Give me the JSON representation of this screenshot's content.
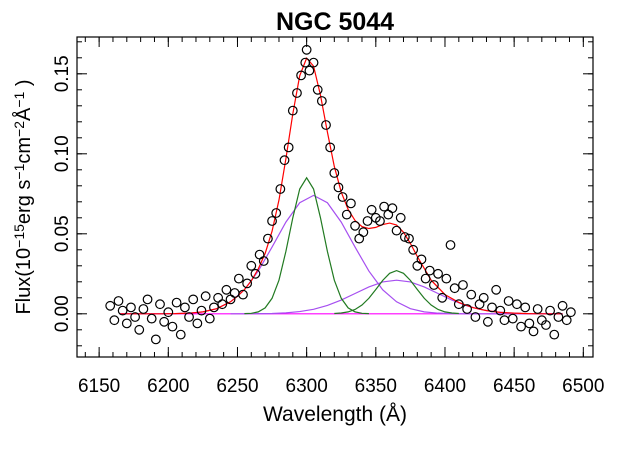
{
  "chart_data": {
    "type": "scatter",
    "title": "NGC 5044",
    "xlabel": "Wavelength (Å)",
    "ylabel": [
      {
        "text": "Flux(10",
        "sup": false
      },
      {
        "text": "−15",
        "sup": true
      },
      {
        "text": "erg s",
        "sup": false
      },
      {
        "text": "−1",
        "sup": true
      },
      {
        "text": "cm",
        "sup": false
      },
      {
        "text": "−2",
        "sup": true
      },
      {
        "text": "Å",
        "sup": false
      },
      {
        "text": "−1",
        "sup": true
      },
      {
        "text": " )",
        "sup": false
      }
    ],
    "xlim": [
      6134,
      6507
    ],
    "ylim": [
      -0.027,
      0.173
    ],
    "xticks": [
      6150,
      6200,
      6250,
      6300,
      6350,
      6400,
      6450,
      6500
    ],
    "yticks": [
      {
        "value": 0,
        "label": "0.00"
      },
      {
        "value": 0.05,
        "label": "0.05"
      },
      {
        "value": 0.1,
        "label": "0.10"
      },
      {
        "value": 0.15,
        "label": "0.15"
      }
    ],
    "xminor_step": 10,
    "yminor_step": 0.01,
    "marker_color": "#000000",
    "x": [
      6158,
      6161,
      6164,
      6167,
      6170,
      6173,
      6176,
      6179,
      6182,
      6185,
      6188,
      6191,
      6194,
      6197,
      6200,
      6203,
      6206,
      6209,
      6212,
      6215,
      6218,
      6221,
      6224,
      6227,
      6230,
      6233,
      6236,
      6239,
      6242,
      6245,
      6248,
      6251,
      6254,
      6257,
      6260,
      6263,
      6266,
      6269,
      6272,
      6275,
      6278,
      6281,
      6284,
      6287,
      6290,
      6293,
      6296,
      6299,
      6300,
      6302,
      6305,
      6308,
      6311,
      6314,
      6317,
      6320,
      6323,
      6326,
      6329,
      6332,
      6335,
      6338,
      6341,
      6344,
      6347,
      6350,
      6353,
      6356,
      6359,
      6362,
      6365,
      6368,
      6371,
      6374,
      6377,
      6380,
      6383,
      6386,
      6389,
      6392,
      6395,
      6398,
      6401,
      6404,
      6407,
      6410,
      6413,
      6416,
      6419,
      6422,
      6425,
      6428,
      6431,
      6434,
      6437,
      6440,
      6443,
      6446,
      6449,
      6452,
      6455,
      6458,
      6461,
      6464,
      6467,
      6470,
      6473,
      6476,
      6479,
      6482,
      6485,
      6488,
      6491
    ],
    "values": [
      0.005,
      -0.004,
      0.008,
      0.002,
      -0.006,
      0.004,
      -0.002,
      -0.01,
      0.003,
      0.009,
      -0.003,
      -0.016,
      0.006,
      -0.005,
      0.001,
      -0.008,
      0.007,
      -0.013,
      0.004,
      -0.002,
      0.009,
      -0.006,
      0.002,
      0.011,
      -0.003,
      0.004,
      0.01,
      0.006,
      0.015,
      0.009,
      0.013,
      0.022,
      0.012,
      0.019,
      0.03,
      0.025,
      0.037,
      0.033,
      0.047,
      0.058,
      0.063,
      0.078,
      0.096,
      0.104,
      0.127,
      0.138,
      0.149,
      0.157,
      0.165,
      0.152,
      0.157,
      0.14,
      0.133,
      0.118,
      0.104,
      0.088,
      0.079,
      0.073,
      0.062,
      0.069,
      0.055,
      0.047,
      0.051,
      0.058,
      0.065,
      0.06,
      0.058,
      0.067,
      0.062,
      0.066,
      0.052,
      0.06,
      0.048,
      0.047,
      0.04,
      0.03,
      0.034,
      0.022,
      0.027,
      0.018,
      0.025,
      0.01,
      0.022,
      0.043,
      0.016,
      0.006,
      0.018,
      0.003,
      0.012,
      -0.002,
      0.006,
      0.01,
      -0.005,
      0.004,
      0.015,
      0.002,
      -0.004,
      0.008,
      -0.003,
      0.006,
      -0.008,
      0.004,
      -0.006,
      -0.011,
      0.003,
      -0.004,
      -0.007,
      0.002,
      -0.013,
      -0.002,
      0.005,
      -0.004,
      0.001
    ],
    "lines": [
      {
        "color": "#ff00ff",
        "x": [
          6165,
          6485
        ],
        "values": [
          0,
          0
        ]
      },
      {
        "color": "#a64ff0",
        "x": [
          6165,
          6175,
          6185,
          6195,
          6205,
          6215,
          6225,
          6235,
          6245,
          6255,
          6265,
          6275,
          6285,
          6295,
          6305,
          6315,
          6325,
          6335,
          6345,
          6355,
          6365,
          6375,
          6385,
          6395,
          6405,
          6415,
          6425,
          6435,
          6445,
          6455,
          6465,
          6475,
          6485
        ],
        "values": [
          0,
          0,
          0,
          0,
          0.0001,
          0.0004,
          0.0012,
          0.0032,
          0.0075,
          0.015,
          0.0267,
          0.0417,
          0.0573,
          0.0694,
          0.074,
          0.0694,
          0.0573,
          0.0417,
          0.0267,
          0.015,
          0.0075,
          0.0032,
          0.0012,
          0.0004,
          0.0001,
          0,
          0,
          0,
          0,
          0,
          0,
          0,
          0
        ]
      },
      {
        "color": "#a64ff0",
        "x": [
          6245,
          6255,
          6265,
          6275,
          6285,
          6295,
          6305,
          6315,
          6325,
          6335,
          6345,
          6355,
          6365,
          6375,
          6385,
          6395,
          6405,
          6415,
          6425,
          6435,
          6445,
          6455,
          6465,
          6475,
          6485
        ],
        "values": [
          0,
          0,
          0.0001,
          0.0002,
          0.0006,
          0.0014,
          0.0028,
          0.0052,
          0.0086,
          0.0127,
          0.0168,
          0.0199,
          0.021,
          0.0199,
          0.0168,
          0.0127,
          0.0086,
          0.0052,
          0.0028,
          0.0014,
          0.0006,
          0.0002,
          0.0001,
          0,
          0
        ]
      },
      {
        "color": "#217a21",
        "x": [
          6255,
          6260,
          6265,
          6270,
          6275,
          6280,
          6285,
          6290,
          6295,
          6300,
          6305,
          6310,
          6315,
          6320,
          6325,
          6330,
          6335,
          6340,
          6345
        ],
        "values": [
          0.0001,
          0.0003,
          0.0012,
          0.0037,
          0.0097,
          0.021,
          0.039,
          0.06,
          0.078,
          0.085,
          0.078,
          0.06,
          0.039,
          0.021,
          0.0097,
          0.0037,
          0.0012,
          0.0003,
          0.0001
        ]
      },
      {
        "color": "#217a21",
        "x": [
          6320,
          6325,
          6330,
          6335,
          6340,
          6345,
          6350,
          6355,
          6360,
          6365,
          6370,
          6375,
          6380,
          6385,
          6390,
          6395,
          6400,
          6405,
          6410
        ],
        "values": [
          0.0002,
          0.0005,
          0.0012,
          0.0027,
          0.0055,
          0.0097,
          0.0152,
          0.0209,
          0.0253,
          0.027,
          0.0253,
          0.0209,
          0.0152,
          0.0097,
          0.0055,
          0.0027,
          0.0012,
          0.0005,
          0.0002
        ]
      },
      {
        "color": "#ff0000",
        "x": [
          6165,
          6175,
          6185,
          6195,
          6205,
          6215,
          6225,
          6235,
          6245,
          6250,
          6255,
          6260,
          6265,
          6270,
          6275,
          6280,
          6285,
          6290,
          6295,
          6300,
          6305,
          6310,
          6315,
          6320,
          6325,
          6330,
          6335,
          6340,
          6345,
          6350,
          6355,
          6360,
          6365,
          6370,
          6375,
          6380,
          6390,
          6400,
          6410,
          6420,
          6430,
          6440,
          6450,
          6460,
          6470,
          6485
        ],
        "values": [
          0,
          0,
          0,
          0,
          0.0001,
          0.0004,
          0.0012,
          0.0032,
          0.0075,
          0.0109,
          0.0151,
          0.0206,
          0.028,
          0.0377,
          0.0516,
          0.0711,
          0.0969,
          0.125,
          0.1488,
          0.1598,
          0.1548,
          0.1367,
          0.1136,
          0.0921,
          0.0761,
          0.0652,
          0.0583,
          0.0545,
          0.0533,
          0.054,
          0.0558,
          0.0567,
          0.0555,
          0.051,
          0.044,
          0.0358,
          0.021,
          0.012,
          0.0071,
          0.0039,
          0.002,
          0.0009,
          0.0004,
          0.0001,
          0,
          0
        ]
      }
    ]
  }
}
